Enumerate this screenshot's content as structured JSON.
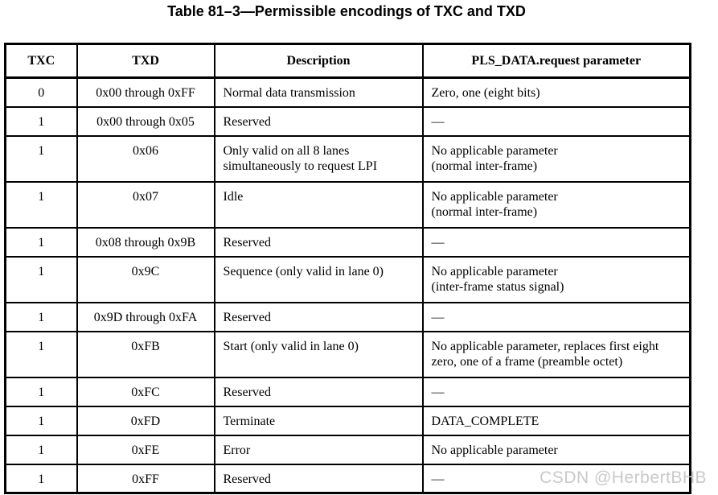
{
  "title": "Table 81–3—Permissible encodings of TXC and TXD",
  "table": {
    "headers": [
      "TXC",
      "TXD",
      "Description",
      "PLS_DATA.request parameter"
    ],
    "rows": [
      {
        "txc": "0",
        "txd": "0x00 through 0xFF",
        "description": "Normal data transmission",
        "parameter": "Zero, one (eight bits)"
      },
      {
        "txc": "1",
        "txd": "0x00 through 0x05",
        "description": "Reserved",
        "parameter": "—"
      },
      {
        "txc": "1",
        "txd": "0x06",
        "description": "Only valid on all 8 lanes\nsimultaneously to request LPI",
        "parameter": "No applicable parameter\n(normal inter-frame)"
      },
      {
        "txc": "1",
        "txd": "0x07",
        "description": "Idle",
        "parameter": "No applicable parameter\n(normal inter-frame)"
      },
      {
        "txc": "1",
        "txd": "0x08 through 0x9B",
        "description": "Reserved",
        "parameter": "—"
      },
      {
        "txc": "1",
        "txd": "0x9C",
        "description": "Sequence (only valid in lane 0)",
        "parameter": "No applicable parameter\n(inter-frame status signal)"
      },
      {
        "txc": "1",
        "txd": "0x9D through 0xFA",
        "description": "Reserved",
        "parameter": "—"
      },
      {
        "txc": "1",
        "txd": "0xFB",
        "description": "Start (only valid in lane 0)",
        "parameter": "No applicable parameter, replaces first eight\nzero, one of a frame (preamble octet)"
      },
      {
        "txc": "1",
        "txd": "0xFC",
        "description": "Reserved",
        "parameter": "—"
      },
      {
        "txc": "1",
        "txd": "0xFD",
        "description": "Terminate",
        "parameter": "DATA_COMPLETE"
      },
      {
        "txc": "1",
        "txd": "0xFE",
        "description": "Error",
        "parameter": "No applicable parameter"
      },
      {
        "txc": "1",
        "txd": "0xFF",
        "description": "Reserved",
        "parameter": "—"
      }
    ]
  },
  "watermark": "CSDN @HerbertBHB"
}
